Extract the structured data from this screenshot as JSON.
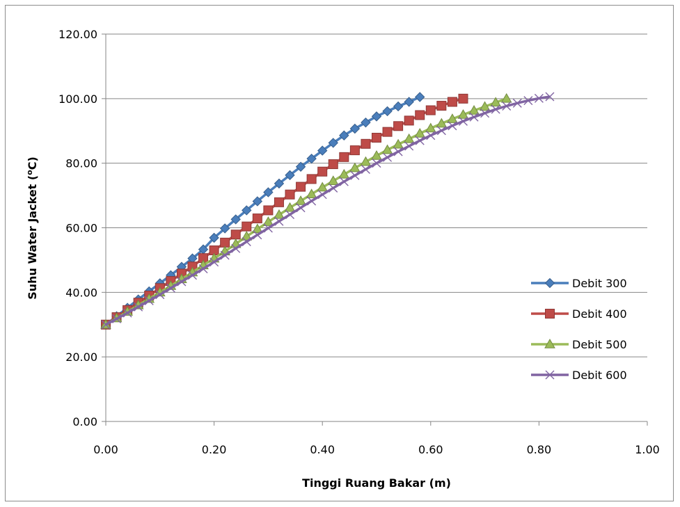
{
  "chart_data": {
    "type": "line",
    "title": "",
    "xlabel": "Tinggi Ruang Bakar (m)",
    "ylabel_parts": {
      "prefix": "Suhu Water Jacket (",
      "sup": "o",
      "suffix": "C)"
    },
    "xlim": [
      0,
      1.0
    ],
    "ylim": [
      0,
      120
    ],
    "x_ticks": [
      "0.00",
      "0.20",
      "0.40",
      "0.60",
      "0.80",
      "1.00"
    ],
    "y_ticks": [
      "0.00",
      "20.00",
      "40.00",
      "60.00",
      "80.00",
      "100.00",
      "120.00"
    ],
    "grid": "horizontal",
    "legend_position": "right",
    "series": [
      {
        "name": "Debit 300",
        "color": "#4a7ebb",
        "marker": "diamond",
        "x": [
          0.0,
          0.02,
          0.04,
          0.06,
          0.08,
          0.1,
          0.12,
          0.14,
          0.16,
          0.18,
          0.2,
          0.22,
          0.24,
          0.26,
          0.28,
          0.3,
          0.32,
          0.34,
          0.36,
          0.38,
          0.4,
          0.42,
          0.44,
          0.46,
          0.48,
          0.5,
          0.52,
          0.54,
          0.56,
          0.58
        ],
        "y": [
          30.0,
          32.6,
          35.2,
          37.8,
          40.3,
          42.8,
          45.3,
          47.9,
          50.5,
          53.3,
          56.9,
          59.8,
          62.6,
          65.4,
          68.2,
          71.0,
          73.7,
          76.3,
          78.9,
          81.4,
          83.9,
          86.3,
          88.6,
          90.7,
          92.6,
          94.5,
          96.1,
          97.6,
          99.0,
          100.5
        ]
      },
      {
        "name": "Debit 400",
        "color": "#be4b48",
        "marker": "square",
        "x": [
          0.0,
          0.02,
          0.04,
          0.06,
          0.08,
          0.1,
          0.12,
          0.14,
          0.16,
          0.18,
          0.2,
          0.22,
          0.24,
          0.26,
          0.28,
          0.3,
          0.32,
          0.34,
          0.36,
          0.38,
          0.4,
          0.42,
          0.44,
          0.46,
          0.48,
          0.5,
          0.52,
          0.54,
          0.56,
          0.58,
          0.6,
          0.62,
          0.64,
          0.66
        ],
        "y": [
          30.0,
          32.3,
          34.5,
          36.8,
          39.0,
          41.3,
          43.5,
          45.8,
          48.0,
          50.6,
          53.0,
          55.4,
          57.9,
          60.4,
          62.9,
          65.4,
          67.9,
          70.3,
          72.7,
          75.1,
          77.4,
          79.7,
          81.9,
          84.0,
          86.0,
          87.9,
          89.7,
          91.5,
          93.2,
          94.9,
          96.4,
          97.8,
          99.0,
          100.0
        ]
      },
      {
        "name": "Debit 500",
        "color": "#9bbb59",
        "marker": "triangle",
        "x": [
          0.0,
          0.02,
          0.04,
          0.06,
          0.08,
          0.1,
          0.12,
          0.14,
          0.16,
          0.18,
          0.2,
          0.22,
          0.24,
          0.26,
          0.28,
          0.3,
          0.32,
          0.34,
          0.36,
          0.38,
          0.4,
          0.42,
          0.44,
          0.46,
          0.48,
          0.5,
          0.52,
          0.54,
          0.56,
          0.58,
          0.6,
          0.62,
          0.64,
          0.66,
          0.68,
          0.7,
          0.72,
          0.74
        ],
        "y": [
          30.0,
          32.0,
          34.0,
          36.0,
          38.0,
          40.0,
          42.0,
          44.1,
          46.2,
          48.4,
          50.5,
          52.7,
          55.0,
          57.3,
          59.6,
          61.8,
          64.0,
          66.2,
          68.3,
          70.4,
          72.5,
          74.5,
          76.5,
          78.5,
          80.4,
          82.3,
          84.1,
          85.8,
          87.5,
          89.2,
          90.8,
          92.3,
          93.7,
          95.0,
          96.3,
          97.5,
          98.8,
          100.0
        ]
      },
      {
        "name": "Debit 600",
        "color": "#8064a2",
        "marker": "x",
        "x": [
          0.0,
          0.02,
          0.04,
          0.06,
          0.08,
          0.1,
          0.12,
          0.14,
          0.16,
          0.18,
          0.2,
          0.22,
          0.24,
          0.26,
          0.28,
          0.3,
          0.32,
          0.34,
          0.36,
          0.38,
          0.4,
          0.42,
          0.44,
          0.46,
          0.48,
          0.5,
          0.52,
          0.54,
          0.56,
          0.58,
          0.6,
          0.62,
          0.64,
          0.66,
          0.68,
          0.7,
          0.72,
          0.74,
          0.76,
          0.78,
          0.8,
          0.82
        ],
        "y": [
          30.0,
          31.8,
          33.6,
          35.5,
          37.4,
          39.3,
          41.3,
          43.3,
          45.3,
          47.3,
          49.4,
          51.5,
          53.6,
          55.7,
          57.8,
          59.9,
          62.0,
          64.1,
          66.2,
          68.3,
          70.3,
          72.3,
          74.3,
          76.2,
          78.1,
          80.0,
          81.8,
          83.6,
          85.3,
          87.0,
          88.6,
          90.1,
          91.6,
          93.0,
          94.3,
          95.5,
          96.7,
          97.7,
          98.6,
          99.4,
          100.1,
          100.6
        ]
      }
    ]
  }
}
